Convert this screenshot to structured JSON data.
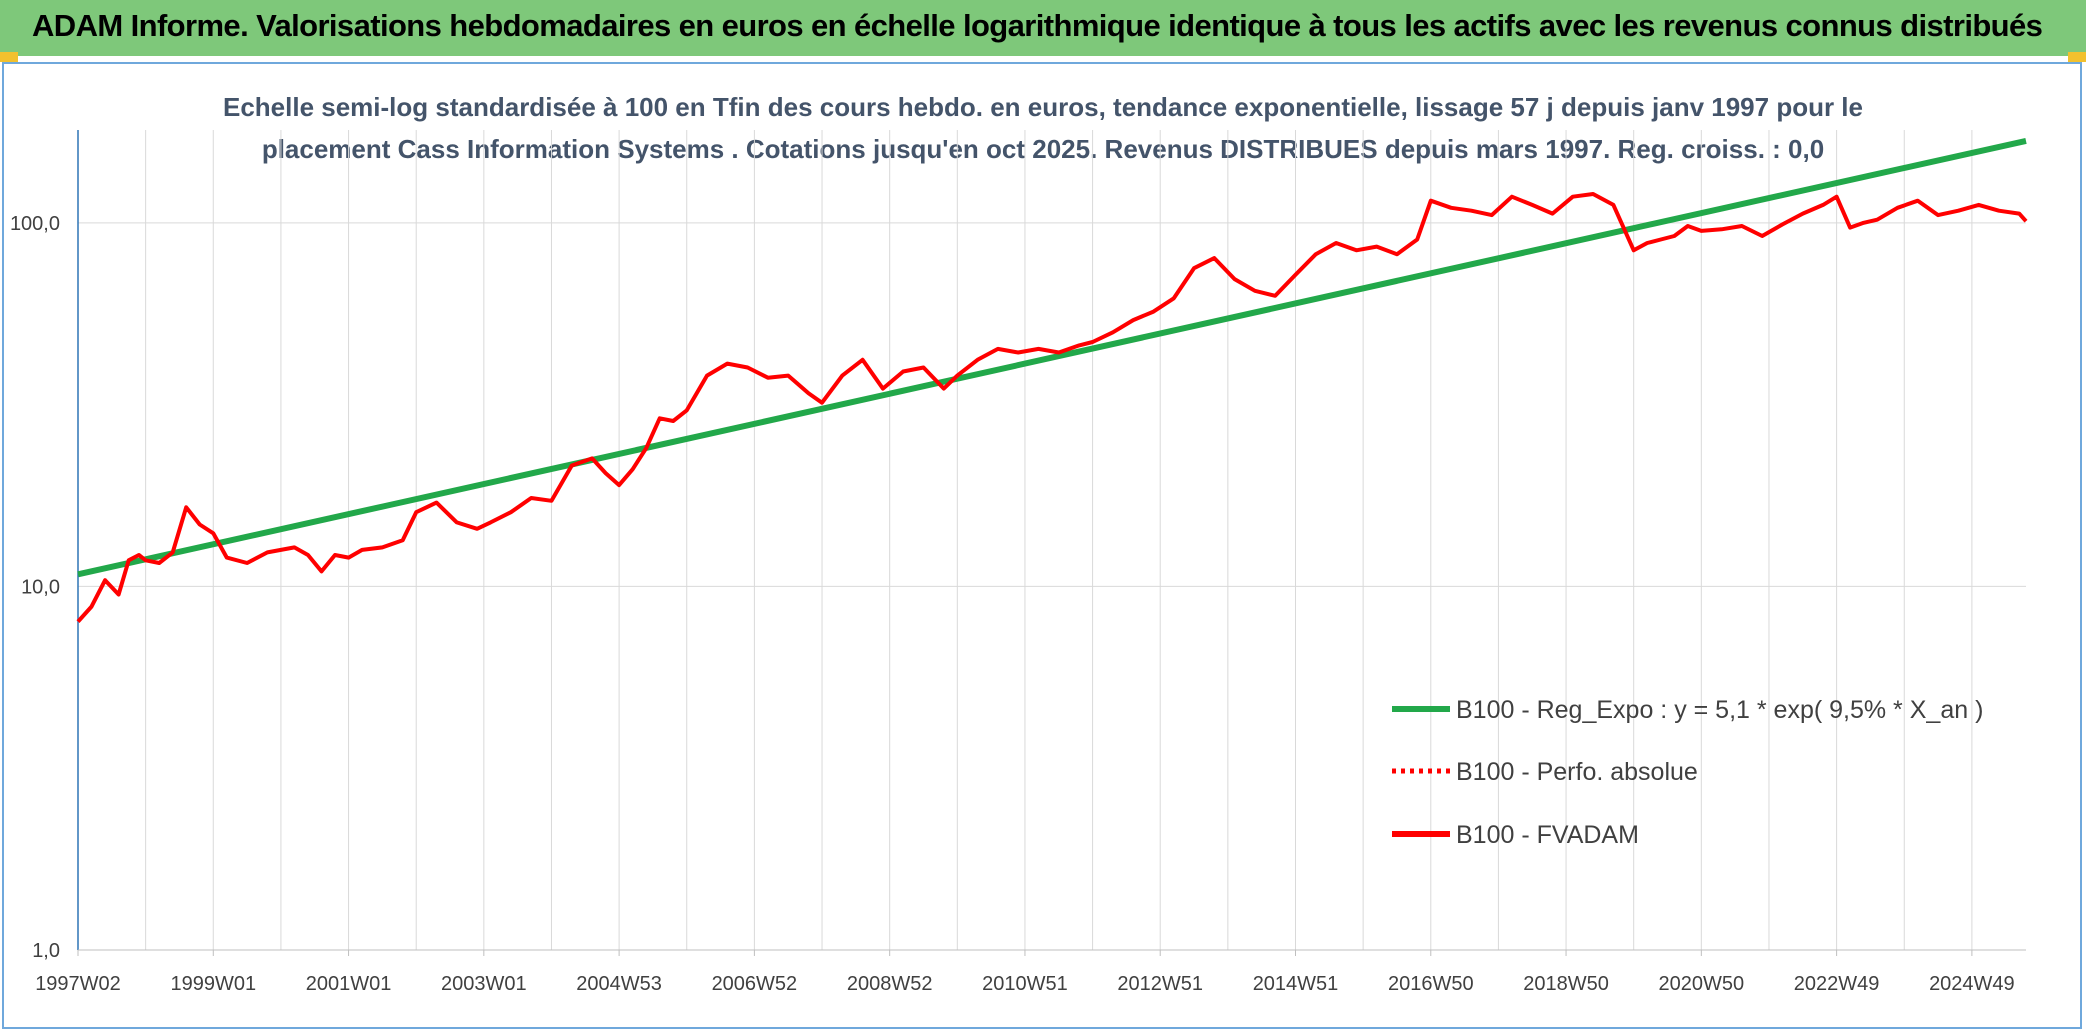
{
  "header": {
    "title": "ADAM Informe. Valorisations hebdomadaires en euros en échelle logarithmique identique à tous les actifs avec les revenus connus distribués"
  },
  "chart_data": {
    "type": "line",
    "title_lines": [
      "Echelle semi-log standardisée à 100 en Tfin des cours hebdo. en euros, tendance exponentielle, lissage 57 j depuis janv 1997 pour le",
      "placement Cass Information Systems . Cotations jusqu'en oct 2025. Revenus DISTRIBUES depuis mars 1997. Reg. croiss. : 0,0"
    ],
    "y_scale": "log",
    "ylim": [
      1,
      180
    ],
    "y_ticks": [
      1,
      10,
      100
    ],
    "y_tick_labels": [
      "1,0",
      "10,0",
      "100,0"
    ],
    "xlim": [
      1997.0,
      2025.8
    ],
    "x_tick_labels": [
      {
        "label": "1997W02",
        "x": 1997.0
      },
      {
        "label": "1999W01",
        "x": 1999.0
      },
      {
        "label": "2001W01",
        "x": 2001.0
      },
      {
        "label": "2003W01",
        "x": 2003.0
      },
      {
        "label": "2004W53",
        "x": 2005.0
      },
      {
        "label": "2006W52",
        "x": 2007.0
      },
      {
        "label": "2008W52",
        "x": 2009.0
      },
      {
        "label": "2010W51",
        "x": 2011.0
      },
      {
        "label": "2012W51",
        "x": 2013.0
      },
      {
        "label": "2014W51",
        "x": 2015.0
      },
      {
        "label": "2016W50",
        "x": 2017.0
      },
      {
        "label": "2018W50",
        "x": 2019.0
      },
      {
        "label": "2020W50",
        "x": 2021.0
      },
      {
        "label": "2022W49",
        "x": 2023.0
      },
      {
        "label": "2024W49",
        "x": 2025.0
      }
    ],
    "grid": true,
    "legend_position": "bottom-right",
    "series": [
      {
        "name": "B100 - Reg_Expo : y = 5,1 * exp( 9,5% * X_an )",
        "color": "#22a84a",
        "style": "solid",
        "x": [
          1997.0,
          2025.8
        ],
        "y": [
          10.8,
          168
        ]
      },
      {
        "name": "B100 - Perfo. absolue",
        "color": "#ff0000",
        "style": "dotted",
        "x": [],
        "y": []
      },
      {
        "name": "B100 - FVADAM",
        "color": "#ff0000",
        "style": "solid",
        "x": [
          1997.0,
          1997.2,
          1997.4,
          1997.6,
          1997.75,
          1997.9,
          1998.0,
          1998.2,
          1998.4,
          1998.6,
          1998.8,
          1999.0,
          1999.2,
          1999.5,
          1999.8,
          2000.0,
          2000.2,
          2000.4,
          2000.6,
          2000.8,
          2001.0,
          2001.2,
          2001.5,
          2001.8,
          2002.0,
          2002.3,
          2002.6,
          2002.9,
          2003.1,
          2003.4,
          2003.7,
          2004.0,
          2004.3,
          2004.6,
          2004.8,
          2005.0,
          2005.2,
          2005.4,
          2005.6,
          2005.8,
          2006.0,
          2006.3,
          2006.6,
          2006.9,
          2007.2,
          2007.5,
          2007.8,
          2008.0,
          2008.3,
          2008.6,
          2008.9,
          2009.2,
          2009.5,
          2009.8,
          2010.0,
          2010.3,
          2010.6,
          2010.9,
          2011.2,
          2011.5,
          2011.8,
          2012.0,
          2012.3,
          2012.6,
          2012.9,
          2013.2,
          2013.5,
          2013.8,
          2014.1,
          2014.4,
          2014.7,
          2015.0,
          2015.3,
          2015.6,
          2015.9,
          2016.2,
          2016.5,
          2016.8,
          2017.0,
          2017.3,
          2017.6,
          2017.9,
          2018.2,
          2018.5,
          2018.8,
          2019.1,
          2019.4,
          2019.7,
          2020.0,
          2020.2,
          2020.4,
          2020.6,
          2020.8,
          2021.0,
          2021.3,
          2021.6,
          2021.9,
          2022.2,
          2022.5,
          2022.8,
          2023.0,
          2023.2,
          2023.4,
          2023.6,
          2023.9,
          2024.2,
          2024.5,
          2024.8,
          2025.1,
          2025.4,
          2025.7,
          2025.8
        ],
        "y": [
          8.0,
          8.8,
          10.4,
          9.5,
          11.8,
          12.2,
          11.8,
          11.6,
          12.4,
          16.5,
          14.8,
          14.0,
          12.0,
          11.6,
          12.4,
          12.6,
          12.8,
          12.2,
          11.0,
          12.2,
          12.0,
          12.6,
          12.8,
          13.4,
          16.0,
          17.0,
          15.0,
          14.4,
          15.0,
          16.0,
          17.5,
          17.2,
          21.5,
          22.5,
          20.5,
          19.0,
          21.0,
          24.0,
          29.0,
          28.5,
          30.5,
          38.0,
          41.0,
          40.0,
          37.5,
          38.0,
          34.0,
          32.0,
          38.0,
          42.0,
          35.0,
          39.0,
          40.0,
          35.0,
          38.0,
          42.0,
          45.0,
          44.0,
          45.0,
          44.0,
          46.0,
          47.0,
          50.0,
          54.0,
          57.0,
          62.0,
          75.0,
          80.0,
          70.0,
          65.0,
          63.0,
          72.0,
          82.0,
          88.0,
          84.0,
          86.0,
          82.0,
          90.0,
          115.0,
          110.0,
          108.0,
          105.0,
          118.0,
          112.0,
          106.0,
          118.0,
          120.0,
          112.0,
          84.0,
          88.0,
          90.0,
          92.0,
          98.0,
          95.0,
          96.0,
          98.0,
          92.0,
          99.0,
          106.0,
          112.0,
          118.0,
          97.0,
          100.0,
          102.0,
          110.0,
          115.0,
          105.0,
          108.0,
          112.0,
          108.0,
          106.0,
          101.0
        ]
      }
    ]
  }
}
